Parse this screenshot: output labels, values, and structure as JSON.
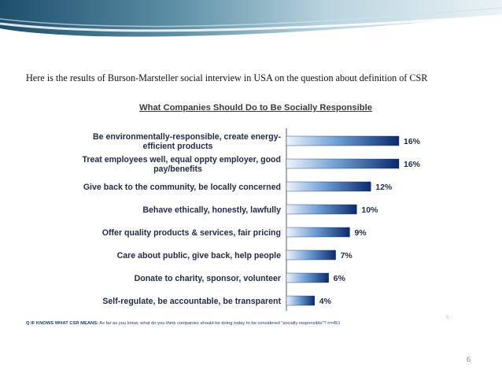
{
  "intro_text": "Here is the results of Burson-Marsteller social interview in USA on the question about definition of CSR",
  "footnote": {
    "prefix": "Q IF KNOWS WHAT CSR MEANS:",
    "text": " As far as you know, what do you think companies should be doing today to be considered “socially responsible”? n=451"
  },
  "inner_page_number": "5",
  "slide_number": "6",
  "colors": {
    "bar_dark": "#0a2a6e",
    "bar_light": "#e8f0fa",
    "banner": "#1c4f6b"
  },
  "chart_data": {
    "type": "bar",
    "orientation": "horizontal",
    "title": "What Companies Should Do to Be Socially Responsible",
    "categories": [
      [
        "Be environmentally-responsible, create energy-",
        "efficient products"
      ],
      [
        "Treat employees well, equal oppty employer, good",
        "pay/benefits"
      ],
      [
        "Give back to the community, be locally concerned"
      ],
      [
        "Behave ethically, honestly, lawfully"
      ],
      [
        "Offer quality products & services, fair pricing"
      ],
      [
        "Care about public, give back, help people"
      ],
      [
        "Donate to charity, sponsor, volunteer"
      ],
      [
        "Self-regulate, be accountable, be transparent"
      ]
    ],
    "values": [
      16,
      16,
      12,
      10,
      9,
      7,
      6,
      4
    ],
    "value_labels": [
      "16%",
      "16%",
      "12%",
      "10%",
      "9%",
      "7%",
      "6%",
      "4%"
    ],
    "unit": "%",
    "xlim": [
      0,
      16
    ],
    "grid": false,
    "legend": false
  }
}
